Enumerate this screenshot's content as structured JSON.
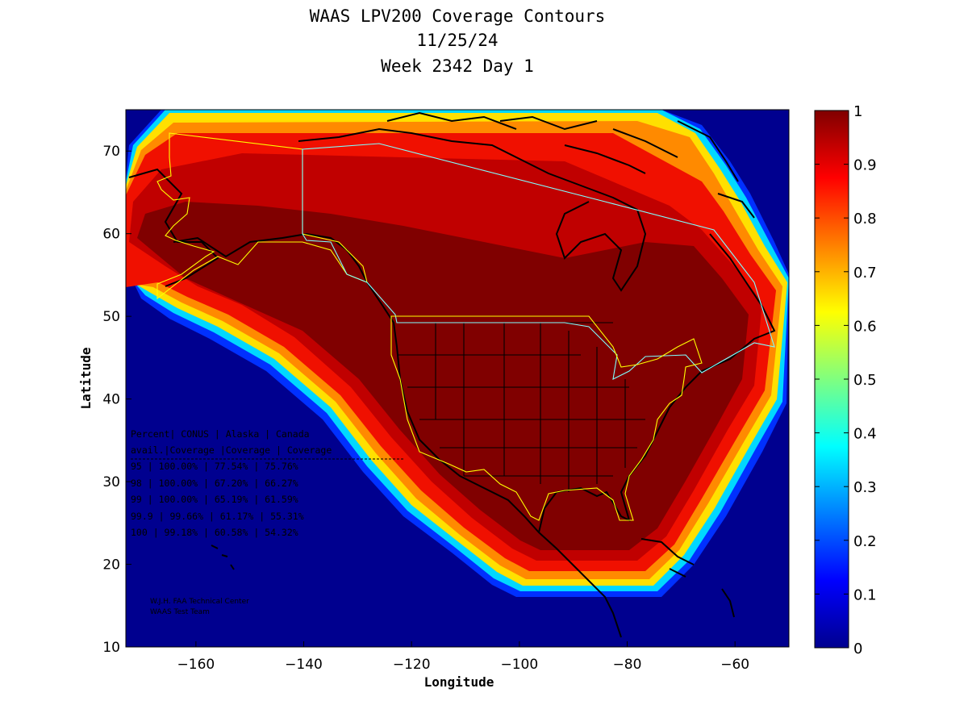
{
  "title": {
    "line1": "WAAS LPV200 Coverage Contours",
    "line2": "11/25/24",
    "line3": "Week 2342 Day 1"
  },
  "axes": {
    "xlabel": "Longitude",
    "ylabel": "Latitude",
    "x_ticks": [
      -160,
      -140,
      -120,
      -100,
      -80,
      -60
    ],
    "y_ticks": [
      10,
      20,
      30,
      40,
      50,
      60,
      70
    ],
    "xlim": [
      -173,
      -50
    ],
    "ylim": [
      10,
      75
    ]
  },
  "colorbar": {
    "ticks": [
      "0",
      "0.1",
      "0.2",
      "0.3",
      "0.4",
      "0.5",
      "0.6",
      "0.7",
      "0.8",
      "0.9",
      "1"
    ],
    "colormap": "jet"
  },
  "stats_table": {
    "header1": "Percent| CONUS   | Alaska  | Canada",
    "header2": " avail.|Coverage |Coverage | Coverage",
    "rows": [
      "  95   | 100.00%  | 77.54% | 75.76%",
      "  98   | 100.00%  | 67.20% | 66.27%",
      "  99   | 100.00%  | 65.19% | 61.59%",
      "99.9   | 99.66%  | 61.17% | 55.31%",
      " 100   | 99.18%  | 60.58% | 54.32%"
    ]
  },
  "credits": {
    "line1": "W.J.H. FAA Technical Center",
    "line2": "WAAS Test Team"
  },
  "colors": {
    "background": "#00008f",
    "coverage_full": "#800000",
    "boundary_yellow": "#ffff00",
    "boundary_cyan": "#7fffff",
    "coastline": "#000000"
  }
}
